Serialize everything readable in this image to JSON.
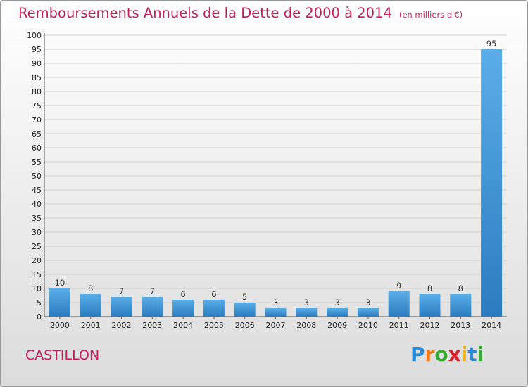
{
  "header": {
    "title": "Remboursements Annuels de la Dette de 2000 à 2014",
    "subtitle": "(en milliers d'€)"
  },
  "footer": {
    "commune": "CASTILLON",
    "logo": "Proxiti",
    "logo_colors": [
      "#2a8ad6",
      "#f07a18",
      "#3aaa35",
      "#d8202a",
      "#f0b418",
      "#2a8ad6",
      "#3aaa35"
    ]
  },
  "chart_data": {
    "type": "bar",
    "title": "Remboursements Annuels de la Dette de 2000 à 2014",
    "subtitle": "(en milliers d'€)",
    "categories": [
      "2000",
      "2001",
      "2002",
      "2003",
      "2004",
      "2005",
      "2006",
      "2007",
      "2008",
      "2009",
      "2010",
      "2011",
      "2012",
      "2013",
      "2014"
    ],
    "values": [
      10,
      8,
      7,
      7,
      6,
      6,
      5,
      3,
      3,
      3,
      3,
      9,
      8,
      8,
      95
    ],
    "ylim": [
      0,
      100
    ],
    "yticks": [
      "0",
      "5",
      "10",
      "15",
      "20",
      "25",
      "30",
      "35",
      "40",
      "45",
      "50",
      "55",
      "60",
      "65",
      "70",
      "75",
      "80",
      "85",
      "90",
      "95",
      "100"
    ],
    "grid": true,
    "bar_color_light": "#5aaee8",
    "bar_color_dark": "#2a7cc0"
  }
}
